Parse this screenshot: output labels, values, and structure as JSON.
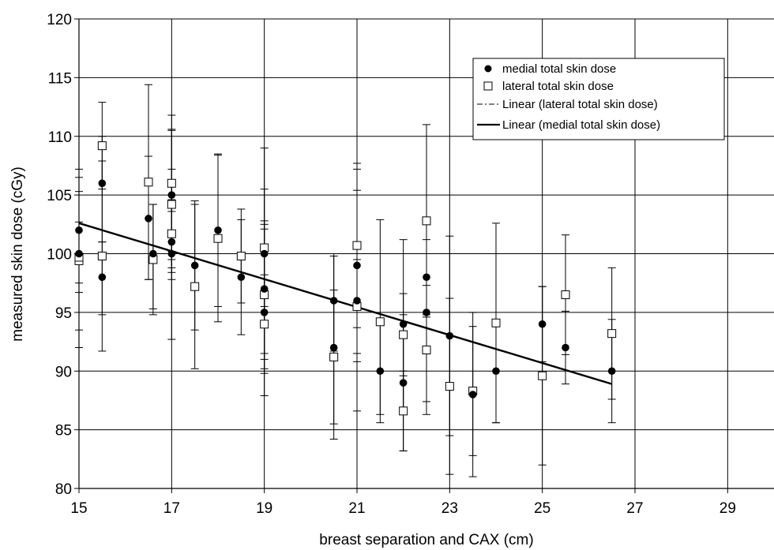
{
  "chart_data": {
    "type": "scatter",
    "title": "",
    "xlabel": "breast separation and CAX (cm)",
    "ylabel": "measured skin dose (cGy)",
    "xlim": [
      15,
      30
    ],
    "ylim": [
      80,
      120
    ],
    "xticks": [
      15,
      17,
      19,
      21,
      23,
      25,
      27,
      29
    ],
    "yticks": [
      80,
      85,
      90,
      95,
      100,
      105,
      110,
      115,
      120
    ],
    "xtick_labels": [
      "15",
      "17",
      "19",
      "21",
      "23",
      "25",
      "27",
      "29"
    ],
    "ytick_labels": [
      "80",
      "85",
      "90",
      "95",
      "100",
      "105",
      "110",
      "115",
      "120"
    ],
    "grid": true,
    "legend_position": "top-right",
    "legend": [
      "medial total skin dose",
      "lateral total skin dose",
      "Linear (lateral total skin dose)",
      "Linear (medial total skin dose)"
    ],
    "series": [
      {
        "name": "medial total skin dose",
        "marker": "filled-circle",
        "points": [
          {
            "x": 15,
            "y": 102,
            "lo": 97.5,
            "hi": 106.5
          },
          {
            "x": 15,
            "y": 100,
            "lo": 92,
            "hi": 107.2
          },
          {
            "x": 15.5,
            "y": 106,
            "lo": 101,
            "hi": 110
          },
          {
            "x": 15.5,
            "y": 98,
            "lo": 94.8,
            "hi": 101
          },
          {
            "x": 16.5,
            "y": 103,
            "lo": 97.8,
            "hi": 108.3
          },
          {
            "x": 16.6,
            "y": 100,
            "lo": 95.3,
            "hi": 104.2
          },
          {
            "x": 17,
            "y": 105,
            "lo": 99.5,
            "hi": 110.5
          },
          {
            "x": 17,
            "y": 101,
            "lo": 98.4,
            "hi": 103.6
          },
          {
            "x": 17,
            "y": 100,
            "lo": 92.7,
            "hi": 107.2
          },
          {
            "x": 17.5,
            "y": 99,
            "lo": 93.5,
            "hi": 104.5
          },
          {
            "x": 18,
            "y": 102,
            "lo": 95.5,
            "hi": 108.5
          },
          {
            "x": 18.5,
            "y": 98,
            "lo": 93.1,
            "hi": 102.9
          },
          {
            "x": 19,
            "y": 100,
            "lo": 91,
            "hi": 109
          },
          {
            "x": 19,
            "y": 97,
            "lo": 91.5,
            "hi": 102.5
          },
          {
            "x": 19,
            "y": 95,
            "lo": 87.9,
            "hi": 102.1
          },
          {
            "x": 20.5,
            "y": 96,
            "lo": 91.7,
            "hi": 100
          },
          {
            "x": 20.5,
            "y": 92,
            "lo": 84.2,
            "hi": 99.8
          },
          {
            "x": 21,
            "y": 99,
            "lo": 90.8,
            "hi": 107.2
          },
          {
            "x": 21,
            "y": 96,
            "lo": 86.6,
            "hi": 105.4
          },
          {
            "x": 21.5,
            "y": 90,
            "lo": 85.6,
            "hi": 94.4
          },
          {
            "x": 22,
            "y": 94,
            "lo": 86.8,
            "hi": 101.2
          },
          {
            "x": 22,
            "y": 89,
            "lo": 83.2,
            "hi": 94.8
          },
          {
            "x": 22.5,
            "y": 98,
            "lo": 94.8,
            "hi": 101.2
          },
          {
            "x": 22.5,
            "y": 95,
            "lo": 87.4,
            "hi": 102.6
          },
          {
            "x": 23,
            "y": 93,
            "lo": 84.5,
            "hi": 101.5
          },
          {
            "x": 23.5,
            "y": 88,
            "lo": 81,
            "hi": 95
          },
          {
            "x": 24,
            "y": 90,
            "lo": 85.6,
            "hi": 94.4
          },
          {
            "x": 25,
            "y": 94,
            "lo": 90.8,
            "hi": 97.2
          },
          {
            "x": 25.5,
            "y": 92,
            "lo": 88.9,
            "hi": 95.1
          },
          {
            "x": 26.5,
            "y": 90,
            "lo": 85.6,
            "hi": 94.4
          }
        ]
      },
      {
        "name": "lateral total skin dose",
        "marker": "open-square",
        "points": [
          {
            "x": 15,
            "y": 99.4,
            "lo": 93.5,
            "hi": 105.3
          },
          {
            "x": 15,
            "y": 99.7,
            "lo": 96.7,
            "hi": 102.7
          },
          {
            "x": 15.5,
            "y": 109.2,
            "lo": 105.5,
            "hi": 112.9
          },
          {
            "x": 15.5,
            "y": 99.8,
            "lo": 91.7,
            "hi": 107.9
          },
          {
            "x": 16.5,
            "y": 106.1,
            "lo": 97.8,
            "hi": 114.4
          },
          {
            "x": 16.6,
            "y": 99.5,
            "lo": 94.8,
            "hi": 104.2
          },
          {
            "x": 17,
            "y": 106,
            "lo": 100.2,
            "hi": 111.8
          },
          {
            "x": 17,
            "y": 104.2,
            "lo": 97.8,
            "hi": 110.6
          },
          {
            "x": 17,
            "y": 101.7,
            "lo": 98.8,
            "hi": 104.6
          },
          {
            "x": 17.5,
            "y": 97.2,
            "lo": 90.2,
            "hi": 104.2
          },
          {
            "x": 18,
            "y": 101.3,
            "lo": 94.2,
            "hi": 108.4
          },
          {
            "x": 18.5,
            "y": 99.8,
            "lo": 95.8,
            "hi": 103.8
          },
          {
            "x": 19,
            "y": 100.5,
            "lo": 95.5,
            "hi": 105.5
          },
          {
            "x": 19,
            "y": 96.5,
            "lo": 90.2,
            "hi": 102.8
          },
          {
            "x": 19,
            "y": 94,
            "lo": 89.8,
            "hi": 98.2
          },
          {
            "x": 20.5,
            "y": 91.2,
            "lo": 85.5,
            "hi": 96.9
          },
          {
            "x": 21,
            "y": 100.7,
            "lo": 93.7,
            "hi": 107.7
          },
          {
            "x": 21,
            "y": 95.5,
            "lo": 91.5,
            "hi": 99.5
          },
          {
            "x": 21.5,
            "y": 94.2,
            "lo": 86.3,
            "hi": 102.9
          },
          {
            "x": 22,
            "y": 93.1,
            "lo": 89.6,
            "hi": 96.6
          },
          {
            "x": 22,
            "y": 86.6,
            "lo": 83.2,
            "hi": 90
          },
          {
            "x": 22.5,
            "y": 102.8,
            "lo": 94.6,
            "hi": 111
          },
          {
            "x": 22.5,
            "y": 91.8,
            "lo": 86.3,
            "hi": 97.3
          },
          {
            "x": 23,
            "y": 88.7,
            "lo": 81.2,
            "hi": 96.2
          },
          {
            "x": 23.5,
            "y": 88.3,
            "lo": 82.8,
            "hi": 93.8
          },
          {
            "x": 24,
            "y": 94.1,
            "lo": 85.6,
            "hi": 102.6
          },
          {
            "x": 25,
            "y": 89.6,
            "lo": 82,
            "hi": 97.2
          },
          {
            "x": 25.5,
            "y": 96.5,
            "lo": 91.4,
            "hi": 101.6
          },
          {
            "x": 26.5,
            "y": 93.2,
            "lo": 87.6,
            "hi": 98.8
          }
        ]
      }
    ],
    "trendlines": [
      {
        "name": "Linear (medial total skin dose)",
        "style": "solid",
        "x": [
          15,
          26.5
        ],
        "y": [
          102.6,
          88.9
        ]
      },
      {
        "name": "Linear (lateral total skin dose)",
        "style": "dash-dot",
        "x": [
          15,
          26.5
        ],
        "y": [
          102.6,
          88.9
        ]
      }
    ]
  }
}
